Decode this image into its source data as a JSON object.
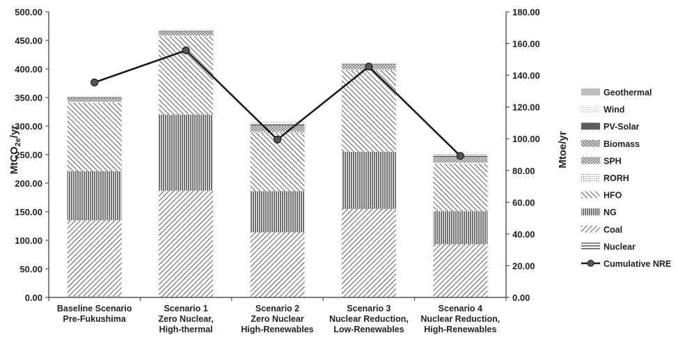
{
  "chart_data": {
    "type": "bar",
    "stacked": true,
    "categories": [
      [
        "Baseline Scenario",
        "Pre-Fukushima"
      ],
      [
        "Scenario 1",
        "Zero Nuclear,",
        "High-thermal"
      ],
      [
        "Scenario 2",
        "Zero Nuclear",
        "High-Renewables"
      ],
      [
        "Scenario 3",
        "Nuclear Reduction,",
        "Low-Renewables"
      ],
      [
        "Scenario 4",
        "Nuclear Reduction,",
        "High-Renewables"
      ]
    ],
    "ylabel_left": "MtCO2e/yr",
    "ylabel_right": "Mtoe/yr",
    "ylim_left": [
      0,
      500
    ],
    "ylim_right": [
      0,
      180
    ],
    "yticks_left": [
      "0.00",
      "50.00",
      "100.00",
      "150.00",
      "200.00",
      "250.00",
      "300.00",
      "350.00",
      "400.00",
      "450.00",
      "500.00"
    ],
    "yticks_right": [
      "0.00",
      "20.00",
      "40.00",
      "60.00",
      "80.00",
      "100.00",
      "120.00",
      "140.00",
      "160.00",
      "180.00"
    ],
    "grid": false,
    "legend_position": "right",
    "series": [
      {
        "name": "Nuclear",
        "axis": "left",
        "pattern": "horizontal",
        "values": [
          2,
          0,
          0,
          0,
          0
        ]
      },
      {
        "name": "Coal",
        "axis": "left",
        "pattern": "back-diagonal",
        "values": [
          133,
          187,
          114,
          155,
          93
        ]
      },
      {
        "name": "NG",
        "axis": "left",
        "pattern": "vertical",
        "values": [
          86,
          133,
          72,
          100,
          58
        ]
      },
      {
        "name": "HFO",
        "axis": "left",
        "pattern": "forward-diagonal",
        "values": [
          120,
          137,
          102,
          143,
          83
        ]
      },
      {
        "name": "RORH",
        "axis": "left",
        "pattern": "dots",
        "values": [
          1.5,
          1.5,
          2,
          1.5,
          2
        ]
      },
      {
        "name": "SPH",
        "axis": "left",
        "pattern": "crosshatch",
        "values": [
          7,
          7,
          10,
          8,
          9
        ]
      },
      {
        "name": "Biomass",
        "axis": "left",
        "pattern": "dense-diagonal",
        "values": [
          0.5,
          0.5,
          1,
          0.5,
          1
        ]
      },
      {
        "name": "PV-Solar",
        "axis": "left",
        "pattern": "checker",
        "values": [
          0.3,
          0.3,
          2,
          0.3,
          2
        ]
      },
      {
        "name": "Wind",
        "axis": "left",
        "pattern": "light-dots",
        "values": [
          1,
          1,
          3,
          1,
          2
        ]
      },
      {
        "name": "Geothermal",
        "axis": "left",
        "pattern": "fine-diagonal",
        "values": [
          0.3,
          0.3,
          1,
          0.3,
          1
        ]
      }
    ],
    "line_series": {
      "name": "Cumulative NRE",
      "axis": "right",
      "values": [
        135.5,
        155.7,
        99.5,
        145.5,
        89.2
      ]
    }
  }
}
